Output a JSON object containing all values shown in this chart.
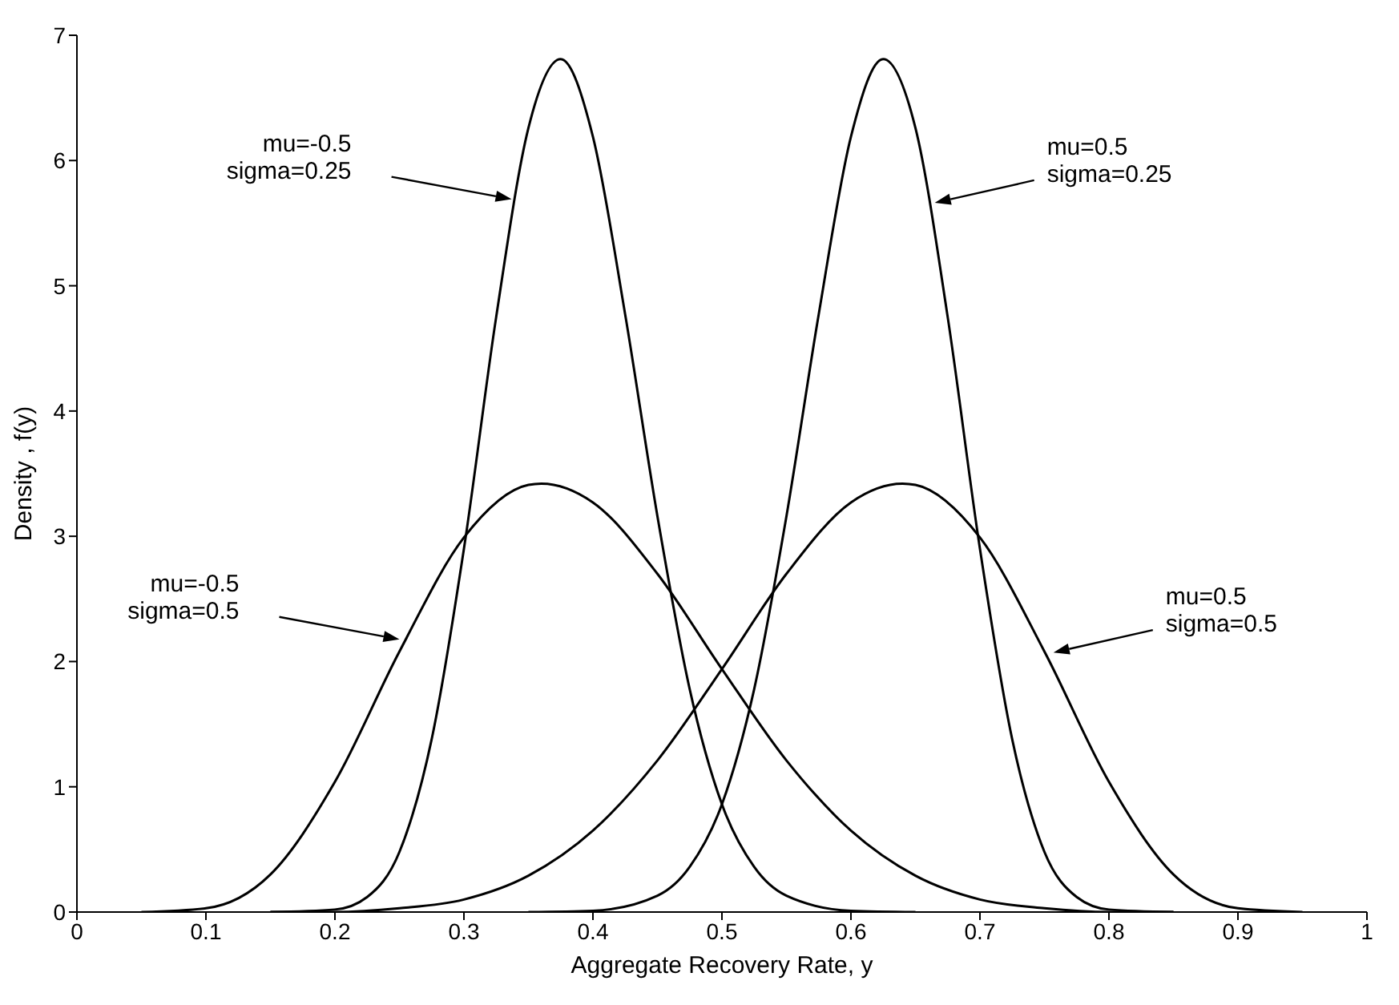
{
  "chart_data": {
    "type": "line",
    "xlabel": "Aggregate Recovery Rate, y",
    "ylabel": "Density , f(y)",
    "xlim": [
      0,
      1
    ],
    "xticks": [
      0,
      0.1,
      0.2,
      0.3,
      0.4,
      0.5,
      0.6,
      0.7,
      0.8,
      0.9,
      1
    ],
    "ylim": [
      0,
      7
    ],
    "yticks": [
      0,
      1,
      2,
      3,
      4,
      5,
      6,
      7
    ],
    "grid": false,
    "marker": "none",
    "line_style": "solid",
    "series": [
      {
        "color": "#000000",
        "x": [
          0.05,
          0.1,
          0.15,
          0.2,
          0.25,
          0.3,
          0.35,
          0.36,
          0.4,
          0.45,
          0.5,
          0.55,
          0.6,
          0.65,
          0.7,
          0.75,
          0.8,
          0.85
        ],
        "values": [
          0,
          0.03,
          0.3,
          1.04,
          2.08,
          2.99,
          3.41,
          3.42,
          3.27,
          2.7,
          1.94,
          1.21,
          0.65,
          0.29,
          0.1,
          0.03,
          0,
          0
        ]
      },
      {
        "color": "#000000",
        "x": [
          0.15,
          0.2,
          0.25,
          0.3,
          0.35,
          0.4,
          0.45,
          0.5,
          0.55,
          0.6,
          0.64,
          0.65,
          0.7,
          0.75,
          0.8,
          0.85,
          0.9,
          0.95
        ],
        "values": [
          0,
          0,
          0.03,
          0.1,
          0.29,
          0.65,
          1.21,
          1.94,
          2.7,
          3.27,
          3.42,
          3.41,
          2.99,
          2.08,
          1.04,
          0.3,
          0.03,
          0
        ]
      },
      {
        "color": "#000000",
        "x": [
          0.15,
          0.2,
          0.225,
          0.25,
          0.275,
          0.3,
          0.325,
          0.35,
          0.375,
          0.4,
          0.425,
          0.45,
          0.475,
          0.5,
          0.525,
          0.55,
          0.6,
          0.65
        ],
        "values": [
          0,
          0.02,
          0.12,
          0.48,
          1.38,
          2.9,
          4.75,
          6.26,
          6.81,
          6.19,
          4.77,
          3.16,
          1.78,
          0.86,
          0.36,
          0.13,
          0.01,
          0
        ]
      },
      {
        "color": "#000000",
        "x": [
          0.35,
          0.4,
          0.45,
          0.475,
          0.5,
          0.525,
          0.55,
          0.575,
          0.6,
          0.625,
          0.65,
          0.675,
          0.7,
          0.725,
          0.75,
          0.775,
          0.8,
          0.85
        ],
        "values": [
          0,
          0.01,
          0.13,
          0.36,
          0.86,
          1.78,
          3.16,
          4.77,
          6.19,
          6.81,
          6.26,
          4.75,
          2.9,
          1.38,
          0.48,
          0.12,
          0.02,
          0
        ]
      }
    ],
    "annotations": [
      "mu=-0.5\nsigma=0.25",
      "mu=0.5\nsigma=0.25",
      "mu=-0.5\nsigma=0.5",
      "mu=0.5\nsigma=0.5"
    ]
  }
}
